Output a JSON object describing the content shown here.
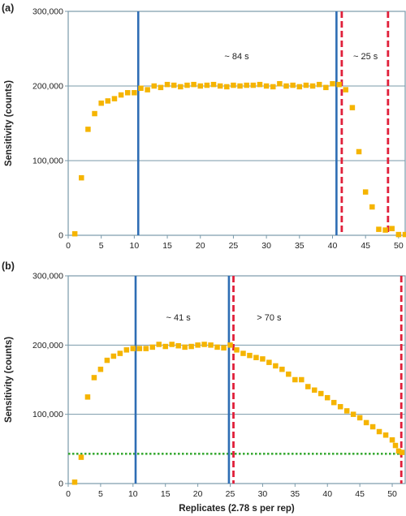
{
  "chart_data": [
    {
      "type": "scatter",
      "panel_label": "(a)",
      "ylabel": "Sensitivity (counts)",
      "xlabel": "",
      "xlim": [
        0,
        51
      ],
      "ylim": [
        0,
        300000
      ],
      "xticks": [
        0,
        5,
        10,
        15,
        20,
        25,
        30,
        35,
        40,
        45,
        50
      ],
      "yticks": [
        0,
        100000,
        200000,
        300000
      ],
      "ytick_labels": [
        "0",
        "100,000",
        "200,000",
        "300,000"
      ],
      "grid": "horizontal",
      "colors": {
        "points": "#f5b400",
        "blue_line": "#2e6db4",
        "red_line": "#e0203a",
        "green_line": "#3aaa35",
        "frame": "#7a9aaa",
        "grid": "#7a9aaa"
      },
      "x": [
        1,
        2,
        3,
        4,
        5,
        6,
        7,
        8,
        9,
        10,
        11,
        12,
        13,
        14,
        15,
        16,
        17,
        18,
        19,
        20,
        21,
        22,
        23,
        24,
        25,
        26,
        27,
        28,
        29,
        30,
        31,
        32,
        33,
        34,
        35,
        36,
        37,
        38,
        39,
        40,
        41,
        42,
        43,
        44,
        45,
        46,
        47,
        48,
        49,
        50
      ],
      "y": [
        2000,
        77000,
        142000,
        163000,
        177000,
        180000,
        183000,
        188000,
        191000,
        191000,
        197000,
        195000,
        200000,
        198000,
        202000,
        201000,
        199000,
        201000,
        202000,
        200000,
        201000,
        202000,
        200000,
        199000,
        201000,
        200000,
        201000,
        201000,
        202000,
        200000,
        199000,
        203000,
        200000,
        201000,
        199000,
        201000,
        200000,
        202000,
        198000,
        203000,
        202000,
        195000,
        171000,
        112000,
        58000,
        38000,
        8000,
        7000,
        9000,
        1000
      ],
      "extra_points": [
        [
          51,
          1000
        ],
        [
          51.5,
          1000
        ]
      ],
      "vlines": [
        {
          "x": 10.6,
          "color": "blue",
          "style": "solid"
        },
        {
          "x": 40.6,
          "color": "blue",
          "style": "solid"
        },
        {
          "x": 41.4,
          "color": "red",
          "style": "dashed"
        },
        {
          "x": 48.4,
          "color": "red",
          "style": "dashed"
        }
      ],
      "hlines": [],
      "annotations": [
        {
          "text": "~ 84 s",
          "x": 25.5,
          "y": 240000
        },
        {
          "text": "~ 25 s",
          "x": 45,
          "y": 240000
        }
      ]
    },
    {
      "type": "scatter",
      "panel_label": "(b)",
      "ylabel": "Sensitivity (counts)",
      "xlabel": "Replicates (2.78 s per rep)",
      "xlim": [
        0,
        52
      ],
      "ylim": [
        0,
        300000
      ],
      "xticks": [
        0,
        5,
        10,
        15,
        20,
        25,
        30,
        35,
        40,
        45,
        50
      ],
      "yticks": [
        0,
        100000,
        200000,
        300000
      ],
      "ytick_labels": [
        "0",
        "100,000",
        "200,000",
        "300,000"
      ],
      "grid": "horizontal",
      "colors": {
        "points": "#f5b400",
        "blue_line": "#2e6db4",
        "red_line": "#e0203a",
        "green_line": "#3aaa35",
        "frame": "#7a9aaa",
        "grid": "#7a9aaa"
      },
      "x": [
        1,
        2,
        3,
        4,
        5,
        6,
        7,
        8,
        9,
        10,
        11,
        12,
        13,
        14,
        15,
        16,
        17,
        18,
        19,
        20,
        21,
        22,
        23,
        24,
        25,
        26,
        27,
        28,
        29,
        30,
        31,
        32,
        33,
        34,
        35,
        36,
        37,
        38,
        39,
        40,
        41,
        42,
        43,
        44,
        45,
        46,
        47,
        48,
        49,
        50
      ],
      "y": [
        2000,
        38000,
        125000,
        153000,
        165000,
        178000,
        184000,
        188000,
        193000,
        195000,
        195000,
        195000,
        197000,
        201000,
        198000,
        201000,
        199000,
        197000,
        198000,
        200000,
        201000,
        200000,
        197000,
        196000,
        200000,
        193000,
        188000,
        185000,
        182000,
        180000,
        175000,
        170000,
        165000,
        158000,
        150000,
        150000,
        140000,
        135000,
        130000,
        124000,
        117000,
        111000,
        105000,
        100000,
        95000,
        88000,
        82000,
        75000,
        70000,
        63000
      ],
      "extra_points": [
        [
          50.5,
          55000
        ],
        [
          51,
          47000
        ],
        [
          51.5,
          45000
        ]
      ],
      "vlines": [
        {
          "x": 10.4,
          "color": "blue",
          "style": "solid"
        },
        {
          "x": 24.8,
          "color": "blue",
          "style": "solid"
        },
        {
          "x": 25.5,
          "color": "red",
          "style": "dashed"
        },
        {
          "x": 51.4,
          "color": "red",
          "style": "dashed"
        }
      ],
      "hlines": [
        {
          "y": 43000,
          "color": "green",
          "style": "dotted"
        }
      ],
      "annotations": [
        {
          "text": "~ 41 s",
          "x": 17,
          "y": 240000
        },
        {
          "text": "> 70 s",
          "x": 31,
          "y": 240000
        }
      ]
    }
  ]
}
